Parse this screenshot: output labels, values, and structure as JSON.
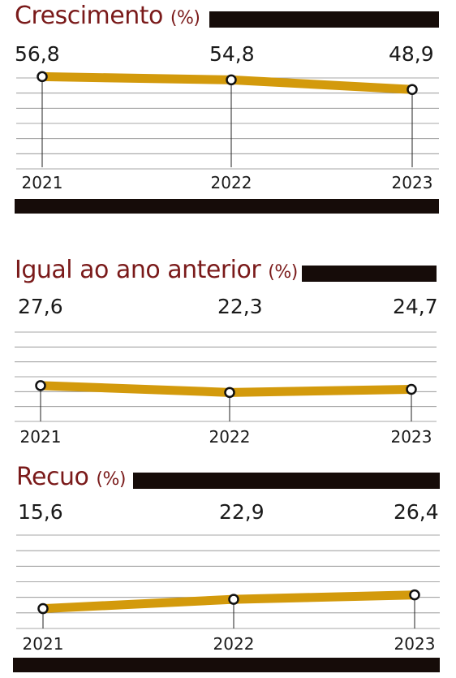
{
  "colors": {
    "title": "#7a1a1a",
    "line": "#d39a0c",
    "bar": "#160c09",
    "grid": "#8a8a8a"
  },
  "chart_data": [
    {
      "type": "line",
      "title": "Crescimento",
      "unit": "(%)",
      "categories": [
        "2021",
        "2022",
        "2023"
      ],
      "values": [
        56.8,
        54.8,
        48.9
      ],
      "value_labels": [
        "56,8",
        "54,8",
        "48,9"
      ],
      "ylim": [
        0,
        60
      ],
      "grid": true
    },
    {
      "type": "line",
      "title": "Igual ao ano anterior",
      "unit": "(%)",
      "categories": [
        "2021",
        "2022",
        "2023"
      ],
      "values": [
        27.6,
        22.3,
        24.7
      ],
      "value_labels": [
        "27,6",
        "22,3",
        "24,7"
      ],
      "ylim": [
        0,
        60
      ],
      "grid": true
    },
    {
      "type": "line",
      "title": "Recuo",
      "unit": "(%)",
      "categories": [
        "2021",
        "2022",
        "2023"
      ],
      "values": [
        15.6,
        22.9,
        26.4
      ],
      "value_labels": [
        "15,6",
        "22,9",
        "26,4"
      ],
      "ylim": [
        0,
        60
      ],
      "grid": true
    }
  ]
}
